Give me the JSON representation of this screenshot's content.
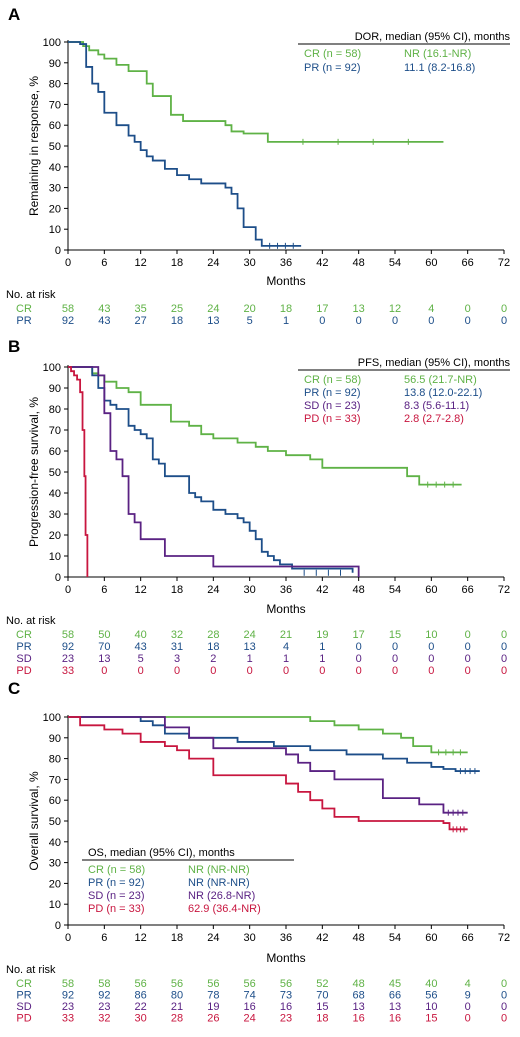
{
  "colors": {
    "CR": "#5fb246",
    "PR": "#1d4e89",
    "SD": "#5a2283",
    "PD": "#c8163f",
    "axis": "#000000"
  },
  "chart_data": [
    {
      "panel": "A",
      "type": "line",
      "step": true,
      "xlabel": "Months",
      "ylabel": "Remaining in response, %",
      "xlim": [
        0,
        72
      ],
      "ylim": [
        0,
        100
      ],
      "xticks": [
        "0",
        "6",
        "12",
        "18",
        "24",
        "30",
        "36",
        "42",
        "48",
        "54",
        "60",
        "66",
        "72"
      ],
      "yticks": [
        "0",
        "10",
        "20",
        "30",
        "40",
        "50",
        "60",
        "70",
        "80",
        "90",
        "100"
      ],
      "legend": {
        "title": "DOR, median (95% CI), months",
        "placement": "top-right",
        "entries": [
          {
            "label": "CR (n = 58)",
            "median": "NR (16.1-NR)"
          },
          {
            "label": "PR (n = 92)",
            "median": "11.1 (8.2-16.8)"
          }
        ]
      },
      "series": [
        {
          "name": "CR",
          "x": [
            0,
            2,
            2.5,
            3.5,
            5,
            6,
            8,
            10,
            13,
            14,
            17,
            19,
            21,
            26,
            27,
            29,
            33,
            62
          ],
          "y": [
            100,
            100,
            98,
            96,
            94,
            92,
            89,
            86,
            80,
            74,
            65,
            62,
            62,
            60,
            57,
            56,
            52,
            52
          ]
        },
        {
          "name": "PR",
          "x": [
            0,
            2,
            3,
            4,
            5,
            6,
            8,
            10,
            11,
            12,
            13,
            14,
            16,
            18,
            20,
            22,
            24,
            26,
            27,
            28,
            29,
            31,
            32,
            38.5
          ],
          "y": [
            100,
            99,
            88,
            80,
            76,
            66,
            60,
            55,
            52,
            48,
            45,
            43,
            39,
            36,
            34,
            32,
            32,
            30,
            27,
            20,
            11,
            5,
            2,
            2
          ]
        }
      ],
      "risk_table": {
        "title": "No. at risk",
        "rows": [
          {
            "label": "CR",
            "values": [
              "58",
              "43",
              "35",
              "25",
              "24",
              "20",
              "18",
              "17",
              "13",
              "12",
              "4",
              "0",
              "0"
            ]
          },
          {
            "label": "PR",
            "values": [
              "92",
              "43",
              "27",
              "18",
              "13",
              "5",
              "1",
              "0",
              "0",
              "0",
              "0",
              "0",
              "0"
            ]
          }
        ]
      }
    },
    {
      "panel": "B",
      "type": "line",
      "step": true,
      "xlabel": "Months",
      "ylabel": "Progression-free survival, %",
      "xlim": [
        0,
        72
      ],
      "ylim": [
        0,
        100
      ],
      "xticks": [
        "0",
        "6",
        "12",
        "18",
        "24",
        "30",
        "36",
        "42",
        "48",
        "54",
        "60",
        "66",
        "72"
      ],
      "yticks": [
        "0",
        "10",
        "20",
        "30",
        "40",
        "50",
        "60",
        "70",
        "80",
        "90",
        "100"
      ],
      "legend": {
        "title": "PFS, median (95% CI), months",
        "placement": "top-right",
        "entries": [
          {
            "label": "CR (n = 58)",
            "median": "56.5 (21.7-NR)"
          },
          {
            "label": "PR (n = 92)",
            "median": "13.8 (12.0-22.1)"
          },
          {
            "label": "SD (n = 23)",
            "median": "8.3 (5.6-11.1)"
          },
          {
            "label": "PD (n = 33)",
            "median": "2.8 (2.7-2.8)"
          }
        ]
      },
      "series": [
        {
          "name": "CR",
          "x": [
            0,
            3,
            4,
            5,
            6,
            8,
            10,
            12,
            15,
            17,
            20,
            22,
            24,
            28,
            31,
            33,
            36,
            40,
            42,
            48,
            55,
            56,
            57,
            58,
            65
          ],
          "y": [
            100,
            100,
            97,
            96,
            93,
            90,
            88,
            82,
            82,
            74,
            72,
            68,
            66,
            64,
            62,
            60,
            58,
            56,
            52,
            52,
            52,
            48,
            48,
            44,
            44
          ]
        },
        {
          "name": "PR",
          "x": [
            0,
            4,
            5,
            6,
            7,
            8,
            10,
            11,
            12,
            13,
            14,
            15,
            16,
            18,
            20,
            21,
            22,
            24,
            26,
            28,
            29,
            30,
            31,
            32,
            33,
            34,
            35,
            37,
            47
          ],
          "y": [
            100,
            96,
            90,
            84,
            82,
            80,
            72,
            70,
            68,
            66,
            56,
            54,
            48,
            48,
            40,
            38,
            36,
            32,
            30,
            28,
            26,
            22,
            18,
            12,
            10,
            8,
            6,
            4,
            2
          ]
        },
        {
          "name": "SD",
          "x": [
            0,
            4,
            5,
            6,
            7,
            8,
            9,
            10,
            11,
            12,
            16,
            20,
            24,
            32,
            48
          ],
          "y": [
            100,
            100,
            96,
            78,
            60,
            56,
            48,
            30,
            26,
            18,
            10,
            10,
            5,
            5,
            0
          ]
        },
        {
          "name": "PD",
          "x": [
            0,
            0.5,
            1,
            1.5,
            2,
            2.4,
            2.7,
            2.9,
            3.2
          ],
          "y": [
            100,
            98,
            96,
            94,
            88,
            70,
            48,
            20,
            0
          ]
        }
      ],
      "risk_table": {
        "title": "No. at risk",
        "rows": [
          {
            "label": "CR",
            "values": [
              "58",
              "50",
              "40",
              "32",
              "28",
              "24",
              "21",
              "19",
              "17",
              "15",
              "10",
              "0",
              "0"
            ]
          },
          {
            "label": "PR",
            "values": [
              "92",
              "70",
              "43",
              "31",
              "18",
              "13",
              "4",
              "1",
              "0",
              "0",
              "0",
              "0",
              "0"
            ]
          },
          {
            "label": "SD",
            "values": [
              "23",
              "13",
              "5",
              "3",
              "2",
              "1",
              "1",
              "1",
              "0",
              "0",
              "0",
              "0",
              "0"
            ]
          },
          {
            "label": "PD",
            "values": [
              "33",
              "0",
              "0",
              "0",
              "0",
              "0",
              "0",
              "0",
              "0",
              "0",
              "0",
              "0",
              "0"
            ]
          }
        ]
      }
    },
    {
      "panel": "C",
      "type": "line",
      "step": true,
      "xlabel": "Months",
      "ylabel": "Overall survival, %",
      "xlim": [
        0,
        72
      ],
      "ylim": [
        0,
        100
      ],
      "xticks": [
        "0",
        "6",
        "12",
        "18",
        "24",
        "30",
        "36",
        "42",
        "48",
        "54",
        "60",
        "66",
        "72"
      ],
      "yticks": [
        "0",
        "10",
        "20",
        "30",
        "40",
        "50",
        "60",
        "70",
        "80",
        "90",
        "100"
      ],
      "legend": {
        "title": "OS, median (95% CI), months",
        "placement": "bottom-left",
        "entries": [
          {
            "label": "CR (n = 58)",
            "median": "NR (NR-NR)"
          },
          {
            "label": "PR (n = 92)",
            "median": "NR (NR-NR)"
          },
          {
            "label": "SD (n = 23)",
            "median": "NR (26.8-NR)"
          },
          {
            "label": "PD (n = 33)",
            "median": "62.9 (36.4-NR)"
          }
        ]
      },
      "series": [
        {
          "name": "CR",
          "x": [
            0,
            38,
            40,
            44,
            48,
            52,
            55,
            57,
            60,
            66
          ],
          "y": [
            100,
            100,
            98,
            96,
            94,
            92,
            90,
            86,
            83,
            83
          ]
        },
        {
          "name": "PR",
          "x": [
            0,
            10,
            12,
            14,
            16,
            20,
            28,
            34,
            40,
            46,
            52,
            56,
            60,
            62,
            64,
            68
          ],
          "y": [
            100,
            100,
            98,
            96,
            92,
            90,
            88,
            86,
            84,
            82,
            80,
            78,
            76,
            75,
            74,
            74
          ]
        },
        {
          "name": "SD",
          "x": [
            0,
            13,
            16,
            20,
            24,
            36,
            38,
            40,
            44,
            52,
            58,
            62,
            66
          ],
          "y": [
            100,
            100,
            95,
            90,
            85,
            82,
            78,
            74,
            70,
            61,
            58,
            54,
            54
          ]
        },
        {
          "name": "PD",
          "x": [
            0,
            2,
            6,
            9,
            12,
            16,
            18,
            20,
            24,
            28,
            34,
            36,
            38,
            40,
            42,
            44,
            48,
            60,
            62,
            63,
            66
          ],
          "y": [
            100,
            96,
            94,
            92,
            88,
            86,
            84,
            80,
            72,
            72,
            72,
            68,
            64,
            60,
            56,
            52,
            50,
            50,
            49,
            46,
            46
          ]
        }
      ],
      "risk_table": {
        "title": "No. at risk",
        "rows": [
          {
            "label": "CR",
            "values": [
              "58",
              "58",
              "56",
              "56",
              "56",
              "56",
              "56",
              "52",
              "48",
              "45",
              "40",
              "4",
              "0"
            ]
          },
          {
            "label": "PR",
            "values": [
              "92",
              "92",
              "86",
              "80",
              "78",
              "74",
              "73",
              "70",
              "68",
              "66",
              "56",
              "9",
              "0"
            ]
          },
          {
            "label": "SD",
            "values": [
              "23",
              "23",
              "22",
              "21",
              "19",
              "16",
              "16",
              "15",
              "13",
              "13",
              "10",
              "0",
              "0"
            ]
          },
          {
            "label": "PD",
            "values": [
              "33",
              "32",
              "30",
              "28",
              "26",
              "24",
              "23",
              "18",
              "16",
              "16",
              "15",
              "0",
              "0"
            ]
          }
        ]
      }
    }
  ]
}
